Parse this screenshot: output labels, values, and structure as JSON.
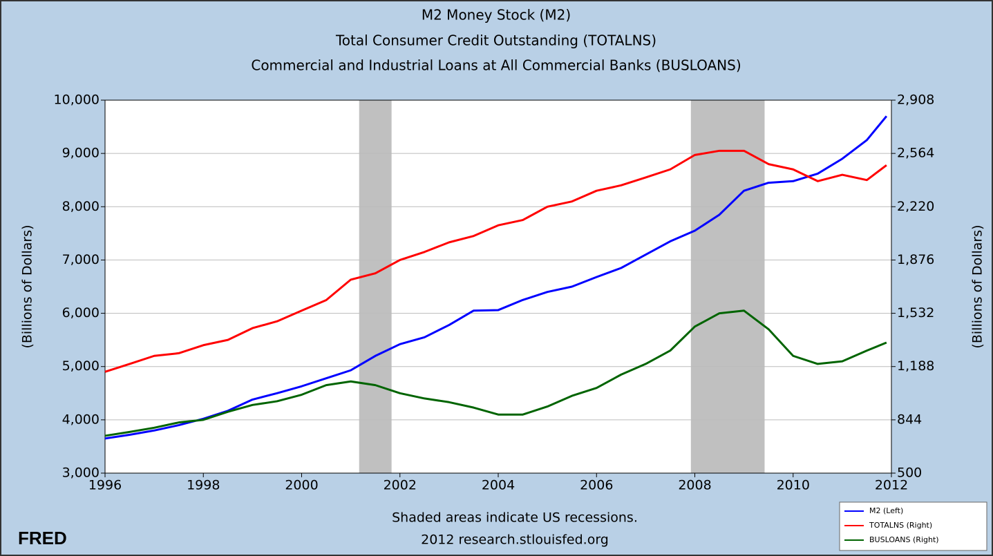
{
  "chart_data": {
    "type": "line",
    "title": [
      "M2 Money Stock (M2)",
      "Total Consumer Credit Outstanding (TOTALNS)",
      "Commercial and Industrial Loans at All Commercial Banks (BUSLOANS)"
    ],
    "ylabel": "(Billions of Dollars)",
    "y2label": "(Billions of Dollars)",
    "note": [
      "Shaded areas indicate US recessions.",
      "2012 research.stlouisfed.org"
    ],
    "logo": "FRED",
    "x": [
      1996,
      1996.5,
      1997,
      1997.5,
      1998,
      1998.5,
      1999,
      1999.5,
      2000,
      2000.5,
      2001,
      2001.5,
      2002,
      2002.5,
      2003,
      2003.5,
      2004,
      2004.5,
      2005,
      2005.5,
      2006,
      2006.5,
      2007,
      2007.5,
      2008,
      2008.5,
      2009,
      2009.5,
      2010,
      2010.5,
      2011,
      2011.5,
      2011.9
    ],
    "series": [
      {
        "name": "M2 (Left)",
        "color": "#0000ff",
        "axis": "y",
        "values": [
          3650,
          3720,
          3800,
          3900,
          4020,
          4170,
          4380,
          4500,
          4630,
          4780,
          4930,
          5200,
          5420,
          5550,
          5780,
          6050,
          6060,
          6250,
          6400,
          6500,
          6680,
          6850,
          7100,
          7350,
          7550,
          7850,
          8300,
          8450,
          8480,
          8620,
          8900,
          9250,
          9700
        ]
      },
      {
        "name": "TOTALNS (Right)",
        "color": "#ff0000",
        "axis": "y2",
        "values": [
          1154,
          1205,
          1257,
          1274,
          1326,
          1360,
          1436,
          1480,
          1549,
          1617,
          1749,
          1790,
          1876,
          1928,
          1990,
          2031,
          2100,
          2134,
          2220,
          2254,
          2323,
          2358,
          2409,
          2461,
          2554,
          2581,
          2581,
          2495,
          2461,
          2385,
          2426,
          2392,
          2488
        ]
      },
      {
        "name": "BUSLOANS (Right)",
        "color": "#006400",
        "axis": "y2",
        "values": [
          741,
          766,
          793,
          827,
          844,
          896,
          940,
          964,
          1006,
          1068,
          1092,
          1068,
          1016,
          982,
          958,
          923,
          878,
          878,
          930,
          999,
          1050,
          1136,
          1205,
          1291,
          1446,
          1532,
          1549,
          1429,
          1257,
          1205,
          1222,
          1291,
          1343
        ]
      }
    ],
    "recessions": [
      [
        2001.17,
        2001.83
      ],
      [
        2007.92,
        2009.42
      ]
    ],
    "xlim": [
      1996,
      2012
    ],
    "xticks": [
      1996,
      1998,
      2000,
      2002,
      2004,
      2006,
      2008,
      2010,
      2012
    ],
    "ylim": [
      3000,
      10000
    ],
    "yticks": [
      {
        "value": 3000,
        "label": "3,000"
      },
      {
        "value": 4000,
        "label": "4,000"
      },
      {
        "value": 5000,
        "label": "5,000"
      },
      {
        "value": 6000,
        "label": "6,000"
      },
      {
        "value": 7000,
        "label": "7,000"
      },
      {
        "value": 8000,
        "label": "8,000"
      },
      {
        "value": 9000,
        "label": "9,000"
      },
      {
        "value": 10000,
        "label": "10,000"
      }
    ],
    "y2lim": [
      500,
      2908
    ],
    "y2ticks": [
      500,
      844,
      {
        "value": 1188,
        "label": "1,188"
      },
      {
        "value": 1532,
        "label": "1,532"
      },
      {
        "value": 1876,
        "label": "1,876"
      },
      {
        "value": 2220,
        "label": "2,220"
      },
      {
        "value": 2564,
        "label": "2,564"
      },
      {
        "value": 2908,
        "label": "2,908"
      }
    ],
    "grid": true,
    "legend": "lower right"
  }
}
